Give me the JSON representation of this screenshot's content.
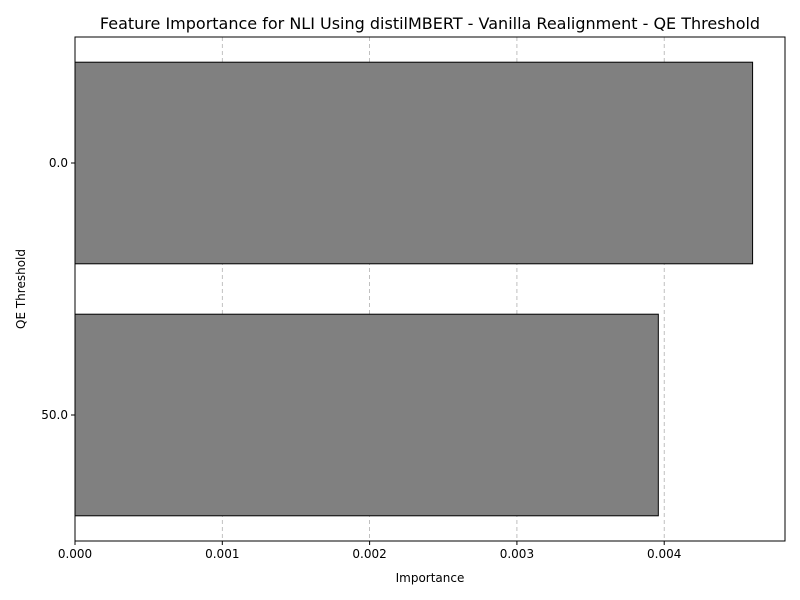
{
  "chart_data": {
    "type": "bar",
    "orientation": "horizontal",
    "title": "Feature Importance for NLI Using distilMBERT - Vanilla Realignment - QE Threshold",
    "xlabel": "Importance",
    "ylabel": "QE Threshold",
    "categories": [
      "0.0",
      "50.0"
    ],
    "values": [
      0.0046,
      0.00396
    ],
    "xlim": [
      0,
      0.00482
    ],
    "xticks": [
      "0.000",
      "0.001",
      "0.002",
      "0.003",
      "0.004"
    ],
    "grid": "x-dashed",
    "bar_color": "#808080",
    "edge_color": "#000000"
  }
}
